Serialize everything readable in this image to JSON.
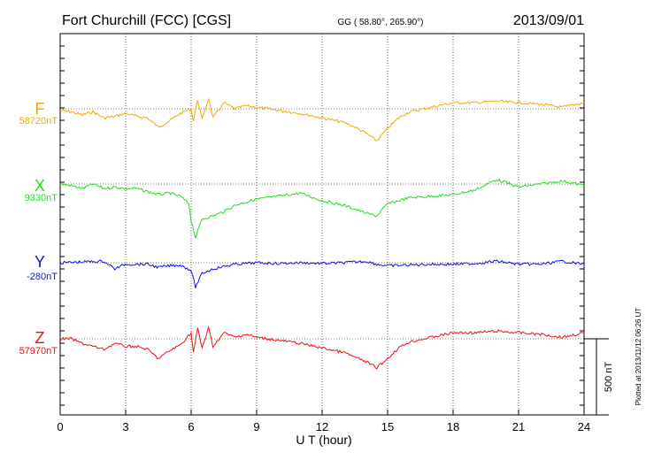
{
  "header": {
    "station": "Fort Churchill (FCC)  [CGS]",
    "coords": "GG ( 58.80°, 265.90°)",
    "date": "2013/09/01"
  },
  "side_note": "Plotted at 2013/11/12 06:26 UT",
  "chart_data": {
    "type": "line",
    "title": "Fort Churchill (FCC)  [CGS]",
    "xlabel": "U T (hour)",
    "xlim": [
      0,
      24
    ],
    "xticks": [
      0,
      3,
      6,
      9,
      12,
      15,
      18,
      21,
      24
    ],
    "scale_bar_label": "500 nT",
    "scale_bar_value_nT": 500,
    "series": [
      {
        "name": "F",
        "baseline_label": "58720nT",
        "color": "#f5a800",
        "points": [
          [
            0,
            58710
          ],
          [
            0.5,
            58700
          ],
          [
            1,
            58680
          ],
          [
            1.5,
            58700
          ],
          [
            2,
            58660
          ],
          [
            2.5,
            58670
          ],
          [
            3,
            58690
          ],
          [
            3.5,
            58670
          ],
          [
            4,
            58660
          ],
          [
            4.5,
            58600
          ],
          [
            5,
            58640
          ],
          [
            5.5,
            58690
          ],
          [
            6,
            58720
          ],
          [
            6.1,
            58640
          ],
          [
            6.3,
            58780
          ],
          [
            6.5,
            58650
          ],
          [
            6.8,
            58790
          ],
          [
            7,
            58660
          ],
          [
            7.5,
            58760
          ],
          [
            8,
            58720
          ],
          [
            8.5,
            58740
          ],
          [
            9,
            58730
          ],
          [
            10,
            58710
          ],
          [
            11,
            58690
          ],
          [
            12,
            58660
          ],
          [
            13,
            58630
          ],
          [
            13.5,
            58600
          ],
          [
            14,
            58560
          ],
          [
            14.5,
            58510
          ],
          [
            15,
            58590
          ],
          [
            15.5,
            58660
          ],
          [
            16,
            58700
          ],
          [
            17,
            58730
          ],
          [
            18,
            58760
          ],
          [
            19,
            58760
          ],
          [
            20,
            58770
          ],
          [
            21,
            58760
          ],
          [
            22,
            58750
          ],
          [
            23,
            58730
          ],
          [
            24,
            58760
          ]
        ]
      },
      {
        "name": "X",
        "baseline_label": "9330nT",
        "color": "#22dd22",
        "points": [
          [
            0,
            9330
          ],
          [
            0.5,
            9320
          ],
          [
            1,
            9300
          ],
          [
            1.5,
            9330
          ],
          [
            2,
            9300
          ],
          [
            2.5,
            9310
          ],
          [
            3,
            9300
          ],
          [
            3.5,
            9300
          ],
          [
            4,
            9280
          ],
          [
            4.5,
            9260
          ],
          [
            5,
            9270
          ],
          [
            5.5,
            9250
          ],
          [
            5.9,
            9200
          ],
          [
            6,
            9090
          ],
          [
            6.2,
            8980
          ],
          [
            6.5,
            9100
          ],
          [
            7,
            9120
          ],
          [
            7.5,
            9150
          ],
          [
            8,
            9190
          ],
          [
            8.5,
            9210
          ],
          [
            9,
            9230
          ],
          [
            10,
            9250
          ],
          [
            11,
            9270
          ],
          [
            12,
            9220
          ],
          [
            13,
            9190
          ],
          [
            14,
            9140
          ],
          [
            14.5,
            9120
          ],
          [
            15,
            9200
          ],
          [
            16,
            9240
          ],
          [
            17,
            9250
          ],
          [
            18,
            9260
          ],
          [
            19,
            9290
          ],
          [
            20,
            9360
          ],
          [
            21,
            9310
          ],
          [
            22,
            9330
          ],
          [
            23,
            9350
          ],
          [
            24,
            9320
          ]
        ]
      },
      {
        "name": "Y",
        "baseline_label": "-280nT",
        "color": "#1010dd",
        "points": [
          [
            0,
            -280
          ],
          [
            1,
            -275
          ],
          [
            2,
            -270
          ],
          [
            2.3,
            -300
          ],
          [
            2.5,
            -320
          ],
          [
            3,
            -290
          ],
          [
            4,
            -290
          ],
          [
            4.5,
            -310
          ],
          [
            5,
            -300
          ],
          [
            5.5,
            -295
          ],
          [
            6,
            -330
          ],
          [
            6.2,
            -440
          ],
          [
            6.5,
            -350
          ],
          [
            7,
            -320
          ],
          [
            8,
            -290
          ],
          [
            9,
            -280
          ],
          [
            10,
            -285
          ],
          [
            11,
            -280
          ],
          [
            12,
            -285
          ],
          [
            13,
            -280
          ],
          [
            14,
            -270
          ],
          [
            14.5,
            -290
          ],
          [
            15,
            -300
          ],
          [
            16,
            -295
          ],
          [
            17,
            -290
          ],
          [
            18,
            -290
          ],
          [
            19,
            -285
          ],
          [
            20,
            -270
          ],
          [
            21,
            -290
          ],
          [
            22,
            -290
          ],
          [
            23,
            -270
          ],
          [
            24,
            -290
          ]
        ]
      },
      {
        "name": "Z",
        "baseline_label": "57970nT",
        "color": "#ee1111",
        "points": [
          [
            0,
            57970
          ],
          [
            0.5,
            57970
          ],
          [
            1,
            57940
          ],
          [
            1.5,
            57920
          ],
          [
            2,
            57900
          ],
          [
            2.5,
            57940
          ],
          [
            3,
            57920
          ],
          [
            3.5,
            57920
          ],
          [
            4,
            57900
          ],
          [
            4.5,
            57840
          ],
          [
            5,
            57890
          ],
          [
            5.5,
            57930
          ],
          [
            6,
            58010
          ],
          [
            6.1,
            57880
          ],
          [
            6.3,
            58040
          ],
          [
            6.5,
            57910
          ],
          [
            6.8,
            58040
          ],
          [
            7,
            57920
          ],
          [
            7.5,
            58010
          ],
          [
            8,
            57980
          ],
          [
            8.5,
            58000
          ],
          [
            9,
            57980
          ],
          [
            10,
            57960
          ],
          [
            11,
            57940
          ],
          [
            12,
            57910
          ],
          [
            13,
            57880
          ],
          [
            13.5,
            57850
          ],
          [
            14,
            57820
          ],
          [
            14.5,
            57780
          ],
          [
            15,
            57840
          ],
          [
            15.5,
            57910
          ],
          [
            16,
            57950
          ],
          [
            17,
            57980
          ],
          [
            18,
            58010
          ],
          [
            19,
            58010
          ],
          [
            20,
            58020
          ],
          [
            21,
            58010
          ],
          [
            22,
            58000
          ],
          [
            23,
            57980
          ],
          [
            24,
            58010
          ]
        ]
      }
    ]
  }
}
